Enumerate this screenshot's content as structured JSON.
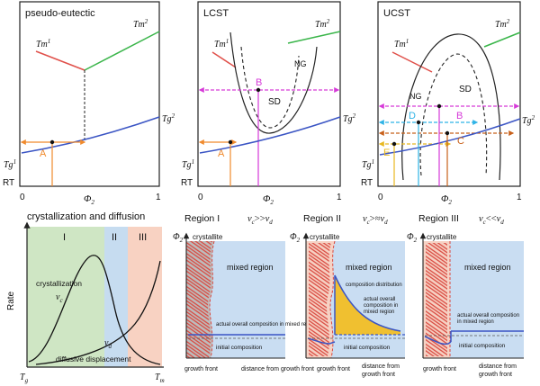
{
  "colors": {
    "red": "#e0504a",
    "green": "#3ab54a",
    "blue": "#3b55c4",
    "orange": "#f08a2c",
    "magenta": "#d63ad8",
    "cyan": "#2fb3e6",
    "dark_orange": "#c8601a",
    "yellow": "#e8b820",
    "region1": "#cfe6c4",
    "region2": "#c6dcf0",
    "region3": "#f8d2c2",
    "mixed_bg": "#c9ddf2",
    "crystal_bg": "#f6d2c4",
    "gray_bg": "#bdbdbd",
    "crystallite": "#d9473e",
    "distribution": "#f0c030"
  },
  "top": {
    "panel1": {
      "title": "pseudo-eutectic",
      "tm1": "Tm",
      "tm1_sup": "1",
      "tm2": "Tm",
      "tm2_sup": "2",
      "tg1": "Tg",
      "tg1_sup": "1",
      "tg2": "Tg",
      "tg2_sup": "2",
      "rt": "RT",
      "label_a": "A",
      "x0": "0",
      "x1": "1",
      "xlabel": "Φ",
      "xlabel_sub": "2"
    },
    "panel2": {
      "title": "LCST",
      "tm1": "Tm",
      "tm1_sup": "1",
      "tm2": "Tm",
      "tm2_sup": "2",
      "tg1": "Tg",
      "tg1_sup": "1",
      "tg2": "Tg",
      "tg2_sup": "2",
      "rt": "RT",
      "label_a": "A",
      "label_b": "B",
      "sd": "SD",
      "ng": "NG",
      "x0": "0",
      "x1": "1",
      "xlabel": "Φ",
      "xlabel_sub": "2"
    },
    "panel3": {
      "title": "UCST",
      "tm1": "Tm",
      "tm1_sup": "1",
      "tm2": "Tm",
      "tm2_sup": "2",
      "tg1": "Tg",
      "tg1_sup": "1",
      "tg2": "Tg",
      "tg2_sup": "2",
      "rt": "RT",
      "label_b": "B",
      "label_c": "C",
      "label_d": "D",
      "label_e": "E",
      "sd": "SD",
      "ng": "NG",
      "x0": "0",
      "x1": "1",
      "xlabel": "Φ",
      "xlabel_sub": "2"
    }
  },
  "bottom": {
    "rate_panel": {
      "title": "crystallization and diffusion",
      "ylabel": "Rate",
      "region_i": "I",
      "region_ii": "II",
      "region_iii": "III",
      "crystallization": "crystallization",
      "vc": "v",
      "vc_sub": "c",
      "vd": "v",
      "vd_sub": "d",
      "diffusive": "diffusive displacement",
      "tg": "T",
      "tg_sub": "g",
      "tm": "T",
      "tm_sub": "m"
    },
    "region1": {
      "title": "Region I",
      "cond_v1": "v",
      "cond_s1": "c",
      "cond_op": ">>",
      "cond_v2": "v",
      "cond_s2": "d",
      "phi": "Φ",
      "phi_sub": "2",
      "crystallite": "crystallite",
      "mixed": "mixed region",
      "actual": "actual overall composition in mixed region",
      "initial": "initial composition",
      "growth_front": "growth front",
      "distance": "distance from growth front"
    },
    "region2": {
      "title": "Region II",
      "cond_v1": "v",
      "cond_s1": "c",
      "cond_op": ">≈",
      "cond_v2": "v",
      "cond_s2": "d",
      "phi": "Φ",
      "phi_sub": "2",
      "crystallite": "crystallite",
      "mixed": "mixed region",
      "distribution": "composition distribution",
      "actual_line1": "actual overall",
      "actual_line2": "composition in",
      "actual_line3": "mixed region",
      "initial": "initial composition",
      "growth_front": "growth front",
      "distance_line1": "distance from",
      "distance_line2": "growth front"
    },
    "region3": {
      "title": "Region III",
      "cond_v1": "v",
      "cond_s1": "c",
      "cond_op": "<<",
      "cond_v2": "v",
      "cond_s2": "d",
      "phi": "Φ",
      "phi_sub": "2",
      "crystallite": "crystallite",
      "mixed": "mixed region",
      "actual_line1": "actual overall composition",
      "actual_line2": "in mixed region",
      "initial": "initial composition",
      "growth_front": "growth front",
      "distance_line1": "distance from",
      "distance_line2": "growth front"
    }
  }
}
